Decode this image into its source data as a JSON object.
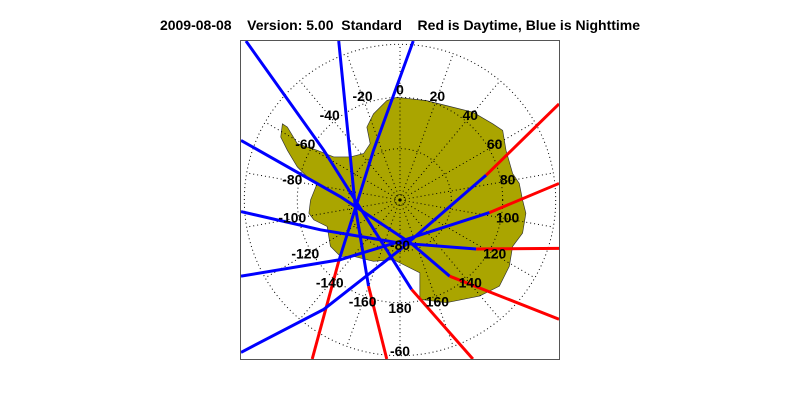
{
  "title": {
    "date": "2009-08-08",
    "version": "Version: 5.00",
    "product": "Standard",
    "legend_note": "Red is Daytime, Blue is Nighttime"
  },
  "map": {
    "projection": "south polar stereographic",
    "land_color": "#aaa500",
    "day_color": "#ff0000",
    "night_color": "#0000ff",
    "longitude_labels": [
      "0",
      "20",
      "40",
      "60",
      "80",
      "100",
      "120",
      "140",
      "160",
      "180",
      "-160",
      "-140",
      "-120",
      "-100",
      "-80",
      "-60",
      "-40",
      "-20"
    ],
    "longitude_values": [
      0,
      20,
      40,
      60,
      80,
      100,
      120,
      140,
      160,
      180,
      -160,
      -140,
      -120,
      -100,
      -80,
      -60,
      -40,
      -20
    ],
    "latitude_labels": [
      "-80",
      "-60"
    ]
  }
}
